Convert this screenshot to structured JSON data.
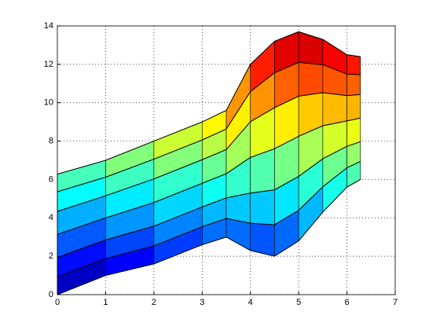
{
  "chart_data": {
    "type": "surface",
    "x": [
      0,
      1,
      2,
      3,
      3.5,
      4,
      4.5,
      5,
      5.5,
      6,
      6.28
    ],
    "series": [
      {
        "values": [
          0,
          1,
          1.6,
          2.6,
          3,
          2.3,
          2,
          2.8,
          4.3,
          5.6,
          6
        ]
      },
      {
        "values": [
          0.92,
          1.88,
          2.54,
          3.54,
          3.97,
          3.72,
          3.64,
          4.4,
          5.62,
          6.61,
          6.94
        ]
      },
      {
        "values": [
          1.94,
          2.85,
          3.57,
          4.57,
          5.04,
          5.29,
          5.46,
          6.16,
          7.08,
          7.73,
          7.97
        ]
      },
      {
        "values": [
          3.14,
          4,
          4.8,
          5.8,
          6.3,
          7.15,
          7.6,
          8.25,
          8.8,
          9.05,
          9.2
        ]
      },
      {
        "values": [
          4.34,
          5.15,
          6.03,
          7.03,
          7.56,
          9.01,
          9.74,
          10.34,
          10.52,
          10.37,
          10.43
        ]
      },
      {
        "values": [
          5.36,
          6.12,
          7.06,
          8.06,
          8.63,
          10.58,
          11.56,
          12.1,
          11.98,
          11.49,
          11.46
        ]
      },
      {
        "values": [
          6.28,
          7,
          8,
          9,
          9.6,
          12,
          13.2,
          13.7,
          13.3,
          12.5,
          12.4
        ]
      }
    ],
    "colormap": "jet",
    "clim": [
      0,
      14
    ],
    "xlim": [
      0,
      7
    ],
    "ylim": [
      0,
      14
    ],
    "xticks": [
      0,
      1,
      2,
      3,
      4,
      5,
      6,
      7
    ],
    "yticks": [
      0,
      2,
      4,
      6,
      8,
      10,
      12,
      14
    ],
    "grid": true
  }
}
